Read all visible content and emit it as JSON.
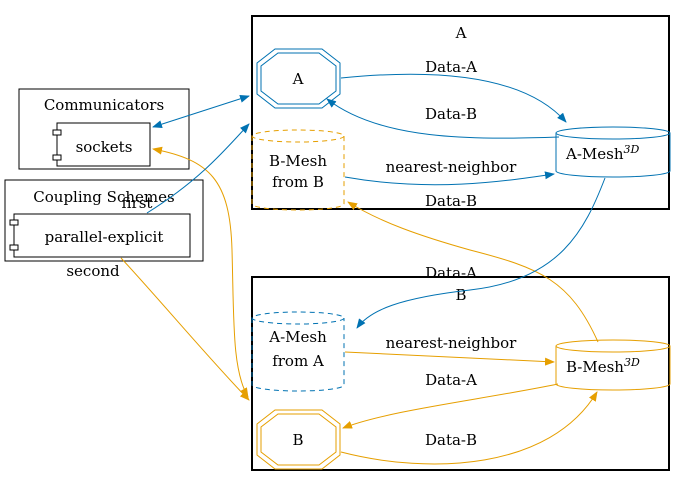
{
  "clusters": {
    "a_title": "A",
    "b_title": "B",
    "communicators_title": "Communicators",
    "coupling_title": "Coupling Schemes"
  },
  "components": {
    "sockets": "sockets",
    "parallel_explicit": "parallel-explicit"
  },
  "nodes": {
    "a_participant": "A",
    "b_participant": "B",
    "b_mesh_from_b_line1": "B-Mesh",
    "b_mesh_from_b_line2": "from B",
    "a_mesh_3d": "A-Mesh",
    "a_mesh_from_a_line1": "A-Mesh",
    "a_mesh_from_a_line2": "from A",
    "b_mesh_3d": "B-Mesh",
    "superscript_3d": "3D"
  },
  "edges": {
    "a_to_amesh": "Data-A",
    "amesh_to_a": "Data-B",
    "bmesh_to_amesh_nn": "nearest-neighbor",
    "bmesh3d_to_bmeshfromb": "Data-B",
    "amesh3d_to_ameshfroma": "Data-A",
    "ameshfroma_to_bmesh_nn": "nearest-neighbor",
    "bmesh3d_to_b": "Data-A",
    "b_to_bmesh3d": "Data-B",
    "first": "first",
    "second": "second"
  },
  "colors": {
    "blue": "#0072b2",
    "orange": "#e69f00",
    "black": "#000000"
  }
}
